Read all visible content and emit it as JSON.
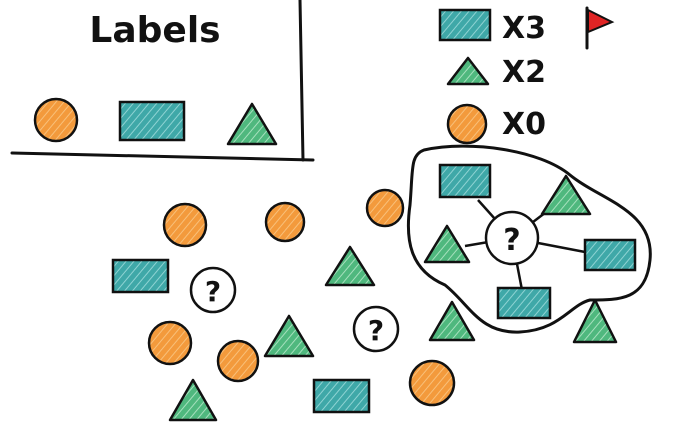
{
  "labels_box": {
    "title": "Labels"
  },
  "legend": {
    "rows": [
      {
        "shape": "rectangle",
        "count_text": "X3",
        "flag": true
      },
      {
        "shape": "triangle",
        "count_text": "X2",
        "flag": false
      },
      {
        "shape": "circle",
        "count_text": "X0",
        "flag": false
      }
    ]
  },
  "unknown_marker": "?",
  "colors": {
    "circle": "#f39a3c",
    "rectangle": "#3fa8a8",
    "triangle": "#4fb87e",
    "stroke": "#111111",
    "flag": "#e02424"
  }
}
